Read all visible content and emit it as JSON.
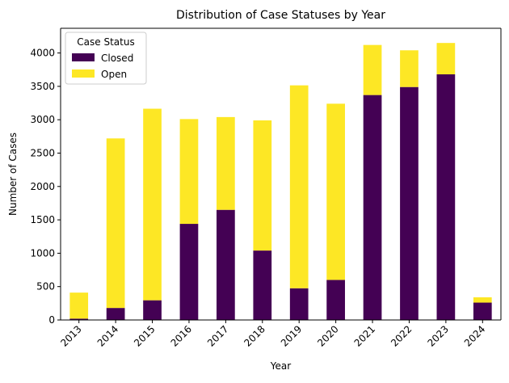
{
  "chart_data": {
    "type": "bar",
    "stacked": true,
    "title": "Distribution of Case Statuses by Year",
    "xlabel": "Year",
    "ylabel": "Number of Cases",
    "categories": [
      "2013",
      "2014",
      "2015",
      "2016",
      "2017",
      "2018",
      "2019",
      "2020",
      "2021",
      "2022",
      "2023",
      "2024"
    ],
    "series": [
      {
        "name": "Closed",
        "color": "#440154",
        "values": [
          20,
          180,
          295,
          1440,
          1650,
          1040,
          475,
          600,
          3370,
          3490,
          3680,
          260
        ]
      },
      {
        "name": "Open",
        "color": "#fde725",
        "values": [
          390,
          2540,
          2870,
          1570,
          1390,
          1950,
          3040,
          2640,
          750,
          550,
          470,
          80
        ]
      }
    ],
    "ylim": [
      0,
      4370
    ],
    "yticks": [
      0,
      500,
      1000,
      1500,
      2000,
      2500,
      3000,
      3500,
      4000
    ],
    "grid": false,
    "legend": {
      "title": "Case Status",
      "position": "top-left"
    }
  }
}
